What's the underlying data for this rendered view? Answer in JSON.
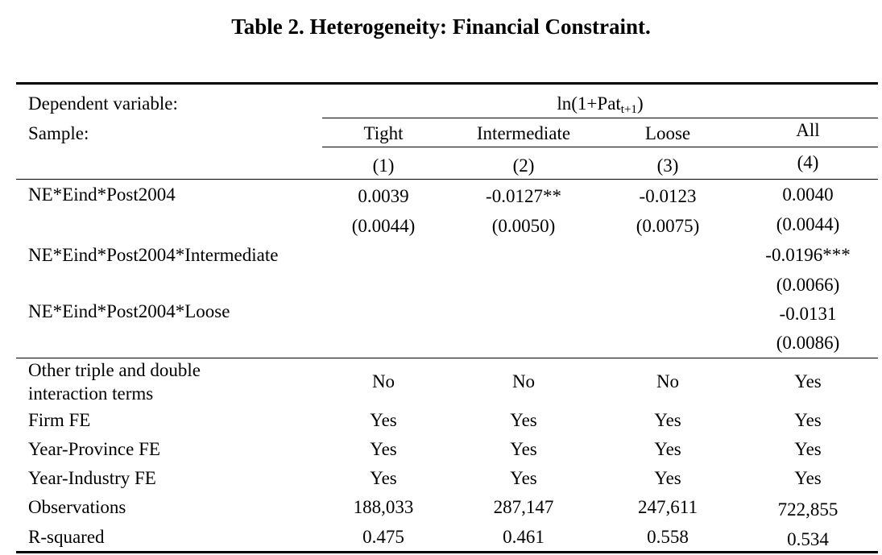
{
  "title": "Table 2. Heterogeneity: Financial Constraint.",
  "header": {
    "dep_label": "Dependent variable:",
    "dep_value_base": "ln(1+Pat",
    "dep_value_sub": "t+1",
    "dep_value_close": ")",
    "sample_label": "Sample:",
    "samples": [
      "Tight",
      "Intermediate",
      "Loose",
      "All"
    ],
    "col_numbers": [
      "(1)",
      "(2)",
      "(3)",
      "(4)"
    ]
  },
  "rows": {
    "r1": {
      "label": "NE*Eind*Post2004",
      "coef": [
        "0.0039",
        "-0.0127**",
        "-0.0123",
        "0.0040"
      ],
      "se": [
        "(0.0044)",
        "(0.0050)",
        "(0.0075)",
        "(0.0044)"
      ]
    },
    "r2": {
      "label": "NE*Eind*Post2004*Intermediate",
      "coef4": "-0.0196***",
      "se4": "(0.0066)"
    },
    "r3": {
      "label": "NE*Eind*Post2004*Loose",
      "coef4": "-0.0131",
      "se4": "(0.0086)"
    },
    "other": {
      "label_line1": "Other triple and double",
      "label_line2": "interaction terms",
      "values": [
        "No",
        "No",
        "No",
        "Yes"
      ]
    },
    "firm_fe": {
      "label": "Firm FE",
      "values": [
        "Yes",
        "Yes",
        "Yes",
        "Yes"
      ]
    },
    "yp_fe": {
      "label": "Year-Province FE",
      "values": [
        "Yes",
        "Yes",
        "Yes",
        "Yes"
      ]
    },
    "yi_fe": {
      "label": "Year-Industry FE",
      "values": [
        "Yes",
        "Yes",
        "Yes",
        "Yes"
      ]
    },
    "obs": {
      "label": "Observations",
      "values": [
        "188,033",
        "287,147",
        "247,611",
        "722,855"
      ]
    },
    "r2sq": {
      "label": "R-squared",
      "values": [
        "0.475",
        "0.461",
        "0.558",
        "0.534"
      ]
    }
  }
}
